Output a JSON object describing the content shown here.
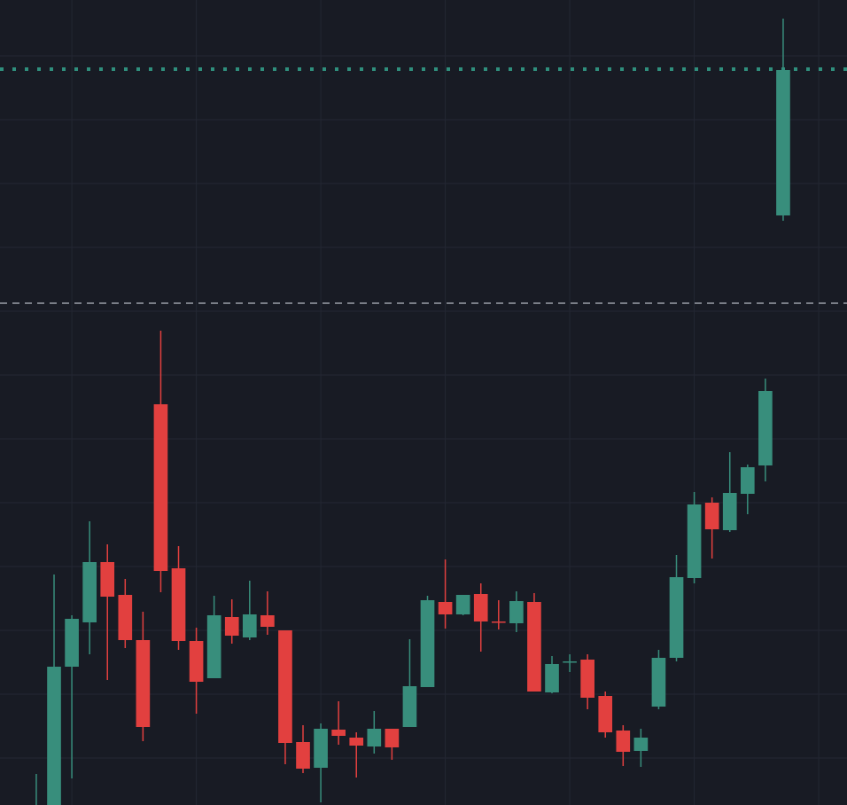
{
  "chart_data": {
    "type": "candlestick",
    "x": [
      0,
      1,
      2,
      3,
      4,
      5,
      6,
      7,
      8,
      9,
      10,
      11,
      12,
      13,
      14,
      15,
      16,
      17,
      18,
      19,
      20,
      21,
      22,
      23,
      24,
      25,
      26,
      27,
      28,
      29,
      30,
      31,
      32,
      33,
      34,
      35,
      36,
      37,
      38,
      39,
      40,
      41,
      42
    ],
    "open": [
      -40,
      -10,
      156,
      206,
      274,
      237,
      186,
      452,
      267,
      185,
      143,
      212,
      189,
      214,
      197,
      71,
      42,
      85,
      76,
      66,
      86,
      88,
      133,
      229,
      215,
      238,
      207,
      205,
      229,
      127,
      161,
      164,
      123,
      84,
      61,
      111,
      166,
      256,
      341,
      310,
      351,
      383,
      665
    ],
    "high": [
      35,
      260,
      214,
      320,
      294,
      255,
      218,
      535,
      292,
      200,
      236,
      232,
      253,
      241,
      197,
      90,
      92,
      117,
      82,
      106,
      86,
      187,
      236,
      277,
      237,
      250,
      231,
      241,
      239,
      168,
      170,
      170,
      128,
      90,
      86,
      175,
      282,
      353,
      347,
      398,
      384,
      481,
      887
    ],
    "low": [
      -60,
      -30,
      30,
      170,
      141,
      177,
      72,
      240,
      175,
      103,
      143,
      182,
      186,
      192,
      46,
      36,
      3,
      68,
      31,
      58,
      51,
      88,
      133,
      199,
      214,
      173,
      198,
      195,
      128,
      126,
      150,
      108,
      76,
      44,
      43,
      108,
      162,
      250,
      278,
      308,
      328,
      365,
      659
    ],
    "close": [
      -10,
      156,
      210,
      274,
      235,
      186,
      88,
      264,
      185,
      139,
      214,
      191,
      215,
      201,
      70,
      41,
      86,
      78,
      67,
      86,
      65,
      134,
      231,
      215,
      237,
      207,
      206,
      230,
      128,
      159,
      162,
      121,
      82,
      60,
      76,
      166,
      257,
      339,
      311,
      352,
      381,
      467,
      829
    ],
    "up_color": "#388e7c",
    "down_color": "#e2403f",
    "xlim": [
      -2.04,
      45.59
    ],
    "ylim": [
      0,
      908
    ],
    "xticks": [
      2,
      9,
      16,
      23,
      30,
      37,
      44
    ],
    "yticks": [
      53,
      125,
      197,
      269,
      341,
      413,
      485,
      557,
      629,
      701,
      773,
      845
    ],
    "grid": true,
    "price_lines": [
      {
        "value": 830,
        "color": "#2f8f7d",
        "style": "dotted"
      },
      {
        "value": 566,
        "color": "#9aa0a8",
        "style": "dashed"
      }
    ]
  }
}
